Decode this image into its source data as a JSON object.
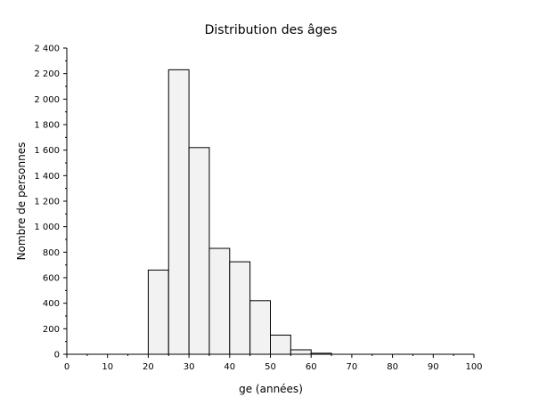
{
  "chart_data": {
    "type": "bar",
    "title": "Distribution des âges",
    "xlabel": "ge (années)",
    "ylabel": "Nombre de personnes",
    "xlim": [
      0,
      100
    ],
    "ylim": [
      0,
      2400
    ],
    "x_ticks": [
      0,
      10,
      20,
      30,
      40,
      50,
      60,
      70,
      80,
      90,
      100
    ],
    "x_tick_labels": [
      "0",
      "10",
      "20",
      "30",
      "40",
      "50",
      "60",
      "70",
      "80",
      "90",
      "100"
    ],
    "y_ticks": [
      0,
      200,
      400,
      600,
      800,
      1000,
      1200,
      1400,
      1600,
      1800,
      2000,
      2200,
      2400
    ],
    "y_tick_labels": [
      "0",
      "200",
      "400",
      "600",
      "800",
      "1 000",
      "1 200",
      "1 400",
      "1 600",
      "1 800",
      "2 000",
      "2 200",
      "2 400"
    ],
    "bin_edges": [
      20,
      25,
      30,
      35,
      40,
      45,
      50,
      55,
      60,
      65
    ],
    "counts": [
      660,
      2230,
      1620,
      830,
      725,
      420,
      150,
      35,
      8
    ],
    "bar_fill": "#f2f2f2",
    "bar_stroke": "#000000",
    "grid": false,
    "legend": "none"
  }
}
